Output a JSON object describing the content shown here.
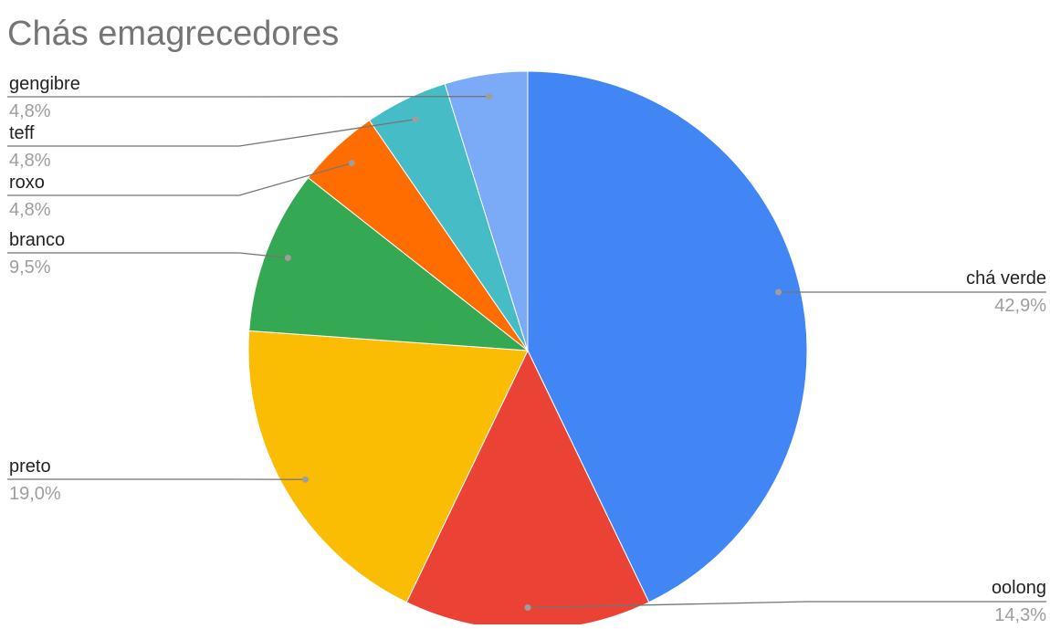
{
  "chart_data": {
    "type": "pie",
    "title": "Chás emagrecedores",
    "slices": [
      {
        "name": "chá verde",
        "value": 42.9,
        "label": "42,9%",
        "color": "#4285F4"
      },
      {
        "name": "oolong",
        "value": 14.3,
        "label": "14,3%",
        "color": "#EA4335"
      },
      {
        "name": "preto",
        "value": 19.0,
        "label": "19,0%",
        "color": "#FBBC04"
      },
      {
        "name": "branco",
        "value": 9.5,
        "label": "9,5%",
        "color": "#34A853"
      },
      {
        "name": "roxo",
        "value": 4.8,
        "label": "4,8%",
        "color": "#FF6D01"
      },
      {
        "name": "teff",
        "value": 4.8,
        "label": "4,8%",
        "color": "#46BDC6"
      },
      {
        "name": "gengibre",
        "value": 4.8,
        "label": "4,8%",
        "color": "#7BAAF7"
      }
    ],
    "start_angle": "12 o'clock",
    "direction": "clockwise",
    "legend": "none (labeled slices)"
  }
}
